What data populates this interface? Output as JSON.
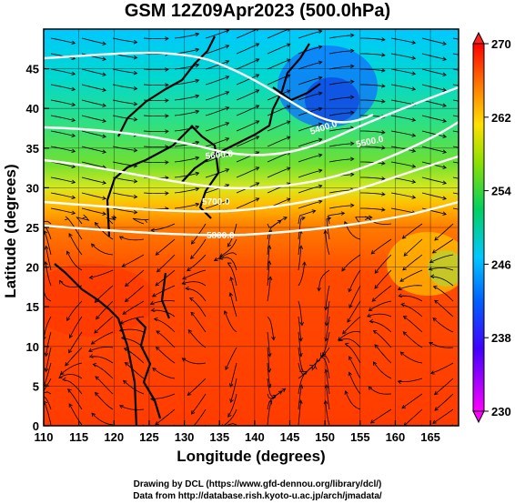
{
  "title": "GSM 12Z09Apr2023 (500.0hPa)",
  "x_axis": {
    "label": "Longitude (degrees)",
    "ticks": [
      "110",
      "115",
      "120",
      "125",
      "130",
      "135",
      "140",
      "145",
      "150",
      "155",
      "160",
      "165"
    ],
    "range": [
      110,
      169
    ]
  },
  "y_axis": {
    "label": "Latitude  (degrees)",
    "ticks": [
      "0",
      "5",
      "10",
      "15",
      "20",
      "25",
      "30",
      "35",
      "40",
      "45"
    ],
    "range": [
      0,
      50
    ]
  },
  "colorbar": {
    "ticks": [
      "230",
      "238",
      "246",
      "254",
      "262",
      "270"
    ],
    "range": [
      230,
      270
    ],
    "colors": [
      "#ff00ff",
      "#0000ff",
      "#00c0ff",
      "#00d000",
      "#ffe000",
      "#ff6000",
      "#ff0000"
    ]
  },
  "contours": [
    {
      "label": "5400.0"
    },
    {
      "label": "5500.0"
    },
    {
      "label": "5600.0"
    },
    {
      "label": "5700.0"
    },
    {
      "label": "5800.0"
    }
  ],
  "credits": {
    "line1": "Drawing by DCL (https://www.gfd-dennou.org/library/dcl/)",
    "line2": "Data from http://database.rish.kyoto-u.ac.jp/arch/jmadata/"
  }
}
